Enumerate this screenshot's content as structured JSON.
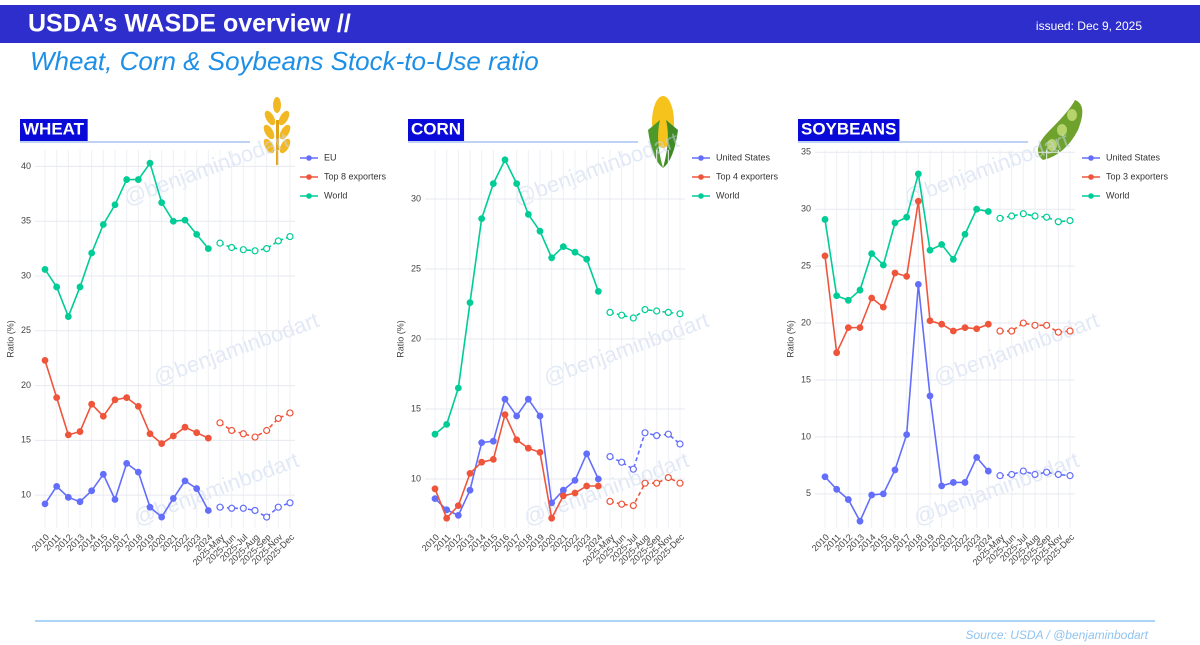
{
  "header": {
    "title": "USDA’s WASDE overview //",
    "issued": "issued: Dec 9, 2025",
    "subtitle": "Wheat, Corn & Soybeans Stock-to-Use ratio",
    "source": "Source: USDA / @benjaminbodart",
    "watermark": "@benjaminbodart"
  },
  "chart_data": [
    {
      "type": "line",
      "title": "WHEAT",
      "ylabel": "Ratio (%)",
      "categories": [
        "2010",
        "2011",
        "2012",
        "2013",
        "2014",
        "2015",
        "2016",
        "2017",
        "2018",
        "2019",
        "2020",
        "2021",
        "2022",
        "2023",
        "2024",
        "2025-May",
        "2025-Jun",
        "2025-Jul",
        "2025-Aug",
        "2025-Sep",
        "2025-Nov",
        "2025-Dec"
      ],
      "ylim": [
        7,
        41.5
      ],
      "yticks": [
        10,
        15,
        20,
        25,
        30,
        35,
        40
      ],
      "grid": true,
      "series": [
        {
          "name": "EU",
          "color": "#636efa",
          "values": [
            9.2,
            10.8,
            9.8,
            9.4,
            10.4,
            11.9,
            9.6,
            12.9,
            12.1,
            8.9,
            8.0,
            9.7,
            11.3,
            10.6,
            8.6,
            null,
            null,
            null,
            null,
            null,
            null,
            null
          ],
          "forecast": [
            null,
            null,
            null,
            null,
            null,
            null,
            null,
            null,
            null,
            null,
            null,
            null,
            null,
            null,
            null,
            8.9,
            8.8,
            8.8,
            8.6,
            8.0,
            8.9,
            9.3
          ]
        },
        {
          "name": "Top 8 exporters",
          "color": "#ef553b",
          "values": [
            22.3,
            18.9,
            15.5,
            15.8,
            18.3,
            17.2,
            18.7,
            18.9,
            18.1,
            15.6,
            14.7,
            15.4,
            16.2,
            15.7,
            15.2,
            null,
            null,
            null,
            null,
            null,
            null,
            null
          ],
          "forecast": [
            null,
            null,
            null,
            null,
            null,
            null,
            null,
            null,
            null,
            null,
            null,
            null,
            null,
            null,
            null,
            16.6,
            15.9,
            15.6,
            15.3,
            15.9,
            17.0,
            17.5
          ]
        },
        {
          "name": "World",
          "color": "#00cc96",
          "values": [
            30.6,
            29.0,
            26.3,
            29.0,
            32.1,
            34.7,
            36.5,
            38.8,
            38.8,
            40.3,
            36.7,
            35.0,
            35.1,
            33.8,
            32.5,
            null,
            null,
            null,
            null,
            null,
            null,
            null
          ],
          "forecast": [
            null,
            null,
            null,
            null,
            null,
            null,
            null,
            null,
            null,
            null,
            null,
            null,
            null,
            null,
            null,
            33.0,
            32.6,
            32.4,
            32.3,
            32.5,
            33.2,
            33.6
          ]
        }
      ]
    },
    {
      "type": "line",
      "title": "CORN",
      "ylabel": "Ratio (%)",
      "categories": [
        "2010",
        "2011",
        "2012",
        "2013",
        "2014",
        "2015",
        "2016",
        "2017",
        "2018",
        "2019",
        "2020",
        "2021",
        "2022",
        "2023",
        "2024",
        "2025-May",
        "2025-Jun",
        "2025-Jul",
        "2025-Aug",
        "2025-Sep",
        "2025-Nov",
        "2025-Dec"
      ],
      "ylim": [
        6.5,
        33.5
      ],
      "yticks": [
        10,
        15,
        20,
        25,
        30
      ],
      "grid": true,
      "series": [
        {
          "name": "United States",
          "color": "#636efa",
          "values": [
            8.6,
            7.8,
            7.4,
            9.2,
            12.6,
            12.7,
            15.7,
            14.5,
            15.7,
            14.5,
            8.3,
            9.2,
            9.9,
            11.8,
            10.0,
            null,
            null,
            null,
            null,
            null,
            null,
            null
          ],
          "forecast": [
            null,
            null,
            null,
            null,
            null,
            null,
            null,
            null,
            null,
            null,
            null,
            null,
            null,
            null,
            null,
            11.6,
            11.2,
            10.7,
            13.3,
            13.1,
            13.2,
            12.5
          ]
        },
        {
          "name": "Top 4 exporters",
          "color": "#ef553b",
          "values": [
            9.3,
            7.2,
            8.1,
            10.4,
            11.2,
            11.4,
            14.6,
            12.8,
            12.2,
            11.9,
            7.2,
            8.8,
            9.0,
            9.5,
            9.5,
            null,
            null,
            null,
            null,
            null,
            null,
            null
          ],
          "forecast": [
            null,
            null,
            null,
            null,
            null,
            null,
            null,
            null,
            null,
            null,
            null,
            null,
            null,
            null,
            null,
            8.4,
            8.2,
            8.1,
            9.7,
            9.7,
            10.1,
            9.7
          ]
        },
        {
          "name": "World",
          "color": "#00cc96",
          "values": [
            13.2,
            13.9,
            16.5,
            22.6,
            28.6,
            31.1,
            32.8,
            31.1,
            28.9,
            27.7,
            25.8,
            26.6,
            26.2,
            25.7,
            23.4,
            null,
            null,
            null,
            null,
            null,
            null,
            null
          ],
          "forecast": [
            null,
            null,
            null,
            null,
            null,
            null,
            null,
            null,
            null,
            null,
            null,
            null,
            null,
            null,
            null,
            21.9,
            21.7,
            21.5,
            22.1,
            22.0,
            21.9,
            21.8
          ]
        }
      ]
    },
    {
      "type": "line",
      "title": "SOYBEANS",
      "ylabel": "Ratio (%)",
      "categories": [
        "2010",
        "2011",
        "2012",
        "2013",
        "2014",
        "2015",
        "2016",
        "2017",
        "2018",
        "2019",
        "2020",
        "2021",
        "2022",
        "2023",
        "2024",
        "2025-May",
        "2025-Jun",
        "2025-Jul",
        "2025-Aug",
        "2025-Sep",
        "2025-Nov",
        "2025-Dec"
      ],
      "ylim": [
        2,
        35.2
      ],
      "yticks": [
        5,
        10,
        15,
        20,
        25,
        30,
        35
      ],
      "grid": true,
      "series": [
        {
          "name": "United States",
          "color": "#636efa",
          "values": [
            6.5,
            5.4,
            4.5,
            2.6,
            4.9,
            5.0,
            7.1,
            10.2,
            23.4,
            13.6,
            5.7,
            6.0,
            6.0,
            8.2,
            7.0,
            null,
            null,
            null,
            null,
            null,
            null,
            null
          ],
          "forecast": [
            null,
            null,
            null,
            null,
            null,
            null,
            null,
            null,
            null,
            null,
            null,
            null,
            null,
            null,
            null,
            6.6,
            6.7,
            7.0,
            6.7,
            6.9,
            6.7,
            6.6
          ]
        },
        {
          "name": "Top 3 exporters",
          "color": "#ef553b",
          "values": [
            25.9,
            17.4,
            19.6,
            19.6,
            22.2,
            21.4,
            24.4,
            24.1,
            30.7,
            20.2,
            19.9,
            19.3,
            19.6,
            19.5,
            19.9,
            null,
            null,
            null,
            null,
            null,
            null,
            null
          ],
          "forecast": [
            null,
            null,
            null,
            null,
            null,
            null,
            null,
            null,
            null,
            null,
            null,
            null,
            null,
            null,
            null,
            19.3,
            19.3,
            20.0,
            19.8,
            19.8,
            19.2,
            19.3
          ]
        },
        {
          "name": "World",
          "color": "#00cc96",
          "values": [
            29.1,
            22.4,
            22.0,
            22.9,
            26.1,
            25.1,
            28.8,
            29.3,
            33.1,
            26.4,
            26.9,
            25.6,
            27.8,
            30.0,
            29.8,
            null,
            null,
            null,
            null,
            null,
            null,
            null
          ],
          "forecast": [
            null,
            null,
            null,
            null,
            null,
            null,
            null,
            null,
            null,
            null,
            null,
            null,
            null,
            null,
            null,
            29.2,
            29.4,
            29.6,
            29.4,
            29.3,
            28.9,
            29.0
          ]
        }
      ]
    }
  ]
}
